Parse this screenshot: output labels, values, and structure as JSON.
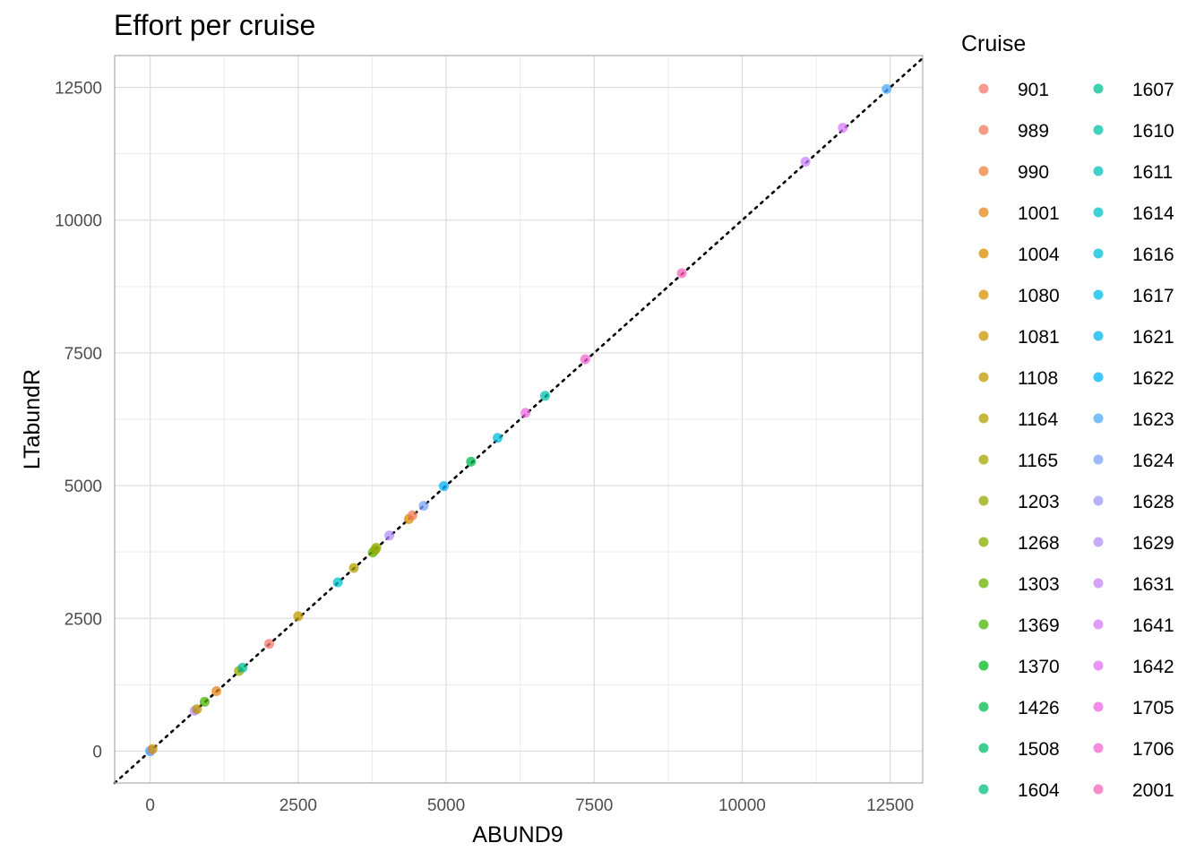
{
  "chart_data": {
    "type": "scatter",
    "title": "Effort per cruise",
    "xlabel": "ABUND9",
    "ylabel": "LTabundR",
    "xlim": [
      -600,
      13050
    ],
    "ylim": [
      -600,
      13100
    ],
    "xticks": [
      0,
      2500,
      5000,
      7500,
      10000,
      12500
    ],
    "yticks": [
      0,
      2500,
      5000,
      7500,
      10000,
      12500
    ],
    "grid": true,
    "reference_line": "y = x (dotted)",
    "legend": {
      "title": "Cruise",
      "placement": "right",
      "entries": [
        {
          "label": "901",
          "color": "#F8766D"
        },
        {
          "label": "989",
          "color": "#F37B59"
        },
        {
          "label": "990",
          "color": "#ED813E"
        },
        {
          "label": "1001",
          "color": "#E6871A"
        },
        {
          "label": "1004",
          "color": "#DE8C00"
        },
        {
          "label": "1080",
          "color": "#D59100"
        },
        {
          "label": "1081",
          "color": "#CB9600"
        },
        {
          "label": "1108",
          "color": "#BF9B00"
        },
        {
          "label": "1164",
          "color": "#B3A000"
        },
        {
          "label": "1165",
          "color": "#A5A400"
        },
        {
          "label": "1203",
          "color": "#95A900"
        },
        {
          "label": "1268",
          "color": "#83AD00"
        },
        {
          "label": "1303",
          "color": "#6BB100"
        },
        {
          "label": "1369",
          "color": "#4BB400"
        },
        {
          "label": "1370",
          "color": "#00B81F"
        },
        {
          "label": "1426",
          "color": "#00BB4E"
        },
        {
          "label": "1508",
          "color": "#00BD6A"
        },
        {
          "label": "1604",
          "color": "#00BF81"
        },
        {
          "label": "1607",
          "color": "#00C096"
        },
        {
          "label": "1610",
          "color": "#00C1A9"
        },
        {
          "label": "1611",
          "color": "#00C1BB"
        },
        {
          "label": "1614",
          "color": "#00C0CB"
        },
        {
          "label": "1616",
          "color": "#00BEDA"
        },
        {
          "label": "1617",
          "color": "#00BBE7"
        },
        {
          "label": "1621",
          "color": "#00B7F3"
        },
        {
          "label": "1622",
          "color": "#00B2FC"
        },
        {
          "label": "1623",
          "color": "#4CABFF"
        },
        {
          "label": "1624",
          "color": "#7CA3FF"
        },
        {
          "label": "1628",
          "color": "#9D9AFF"
        },
        {
          "label": "1629",
          "color": "#B48FFF"
        },
        {
          "label": "1631",
          "color": "#C784FF"
        },
        {
          "label": "1641",
          "color": "#D67AFF"
        },
        {
          "label": "1642",
          "color": "#E46FF3"
        },
        {
          "label": "1705",
          "color": "#EE67E3"
        },
        {
          "label": "1706",
          "color": "#F566D0"
        },
        {
          "label": "2001",
          "color": "#FA66BA"
        }
      ]
    },
    "points": [
      {
        "x": 0,
        "y": 0,
        "cruise": "1622"
      },
      {
        "x": 10,
        "y": 10,
        "cruise": "1629"
      },
      {
        "x": 40,
        "y": 40,
        "cruise": "1081"
      },
      {
        "x": 750,
        "y": 760,
        "cruise": "1629"
      },
      {
        "x": 790,
        "y": 790,
        "cruise": "1108"
      },
      {
        "x": 920,
        "y": 930,
        "cruise": "1369"
      },
      {
        "x": 1120,
        "y": 1130,
        "cruise": "1001"
      },
      {
        "x": 1500,
        "y": 1510,
        "cruise": "1203"
      },
      {
        "x": 1560,
        "y": 1570,
        "cruise": "1607"
      },
      {
        "x": 2010,
        "y": 2020,
        "cruise": "901"
      },
      {
        "x": 2500,
        "y": 2540,
        "cruise": "1108"
      },
      {
        "x": 3170,
        "y": 3180,
        "cruise": "1614"
      },
      {
        "x": 3440,
        "y": 3450,
        "cruise": "1164"
      },
      {
        "x": 3760,
        "y": 3740,
        "cruise": "1303"
      },
      {
        "x": 3800,
        "y": 3790,
        "cruise": "1268"
      },
      {
        "x": 3820,
        "y": 3830,
        "cruise": "1203"
      },
      {
        "x": 4040,
        "y": 4060,
        "cruise": "1629"
      },
      {
        "x": 4370,
        "y": 4370,
        "cruise": "1004"
      },
      {
        "x": 4430,
        "y": 4440,
        "cruise": "989"
      },
      {
        "x": 4620,
        "y": 4620,
        "cruise": "1624"
      },
      {
        "x": 4960,
        "y": 4990,
        "cruise": "1622"
      },
      {
        "x": 5420,
        "y": 5450,
        "cruise": "1426"
      },
      {
        "x": 5870,
        "y": 5900,
        "cruise": "1616"
      },
      {
        "x": 6340,
        "y": 6370,
        "cruise": "1705"
      },
      {
        "x": 6670,
        "y": 6690,
        "cruise": "1610"
      },
      {
        "x": 7350,
        "y": 7380,
        "cruise": "1706"
      },
      {
        "x": 8980,
        "y": 9000,
        "cruise": "2001"
      },
      {
        "x": 11070,
        "y": 11100,
        "cruise": "1631"
      },
      {
        "x": 11700,
        "y": 11740,
        "cruise": "1641"
      },
      {
        "x": 12440,
        "y": 12470,
        "cruise": "1623"
      }
    ]
  }
}
